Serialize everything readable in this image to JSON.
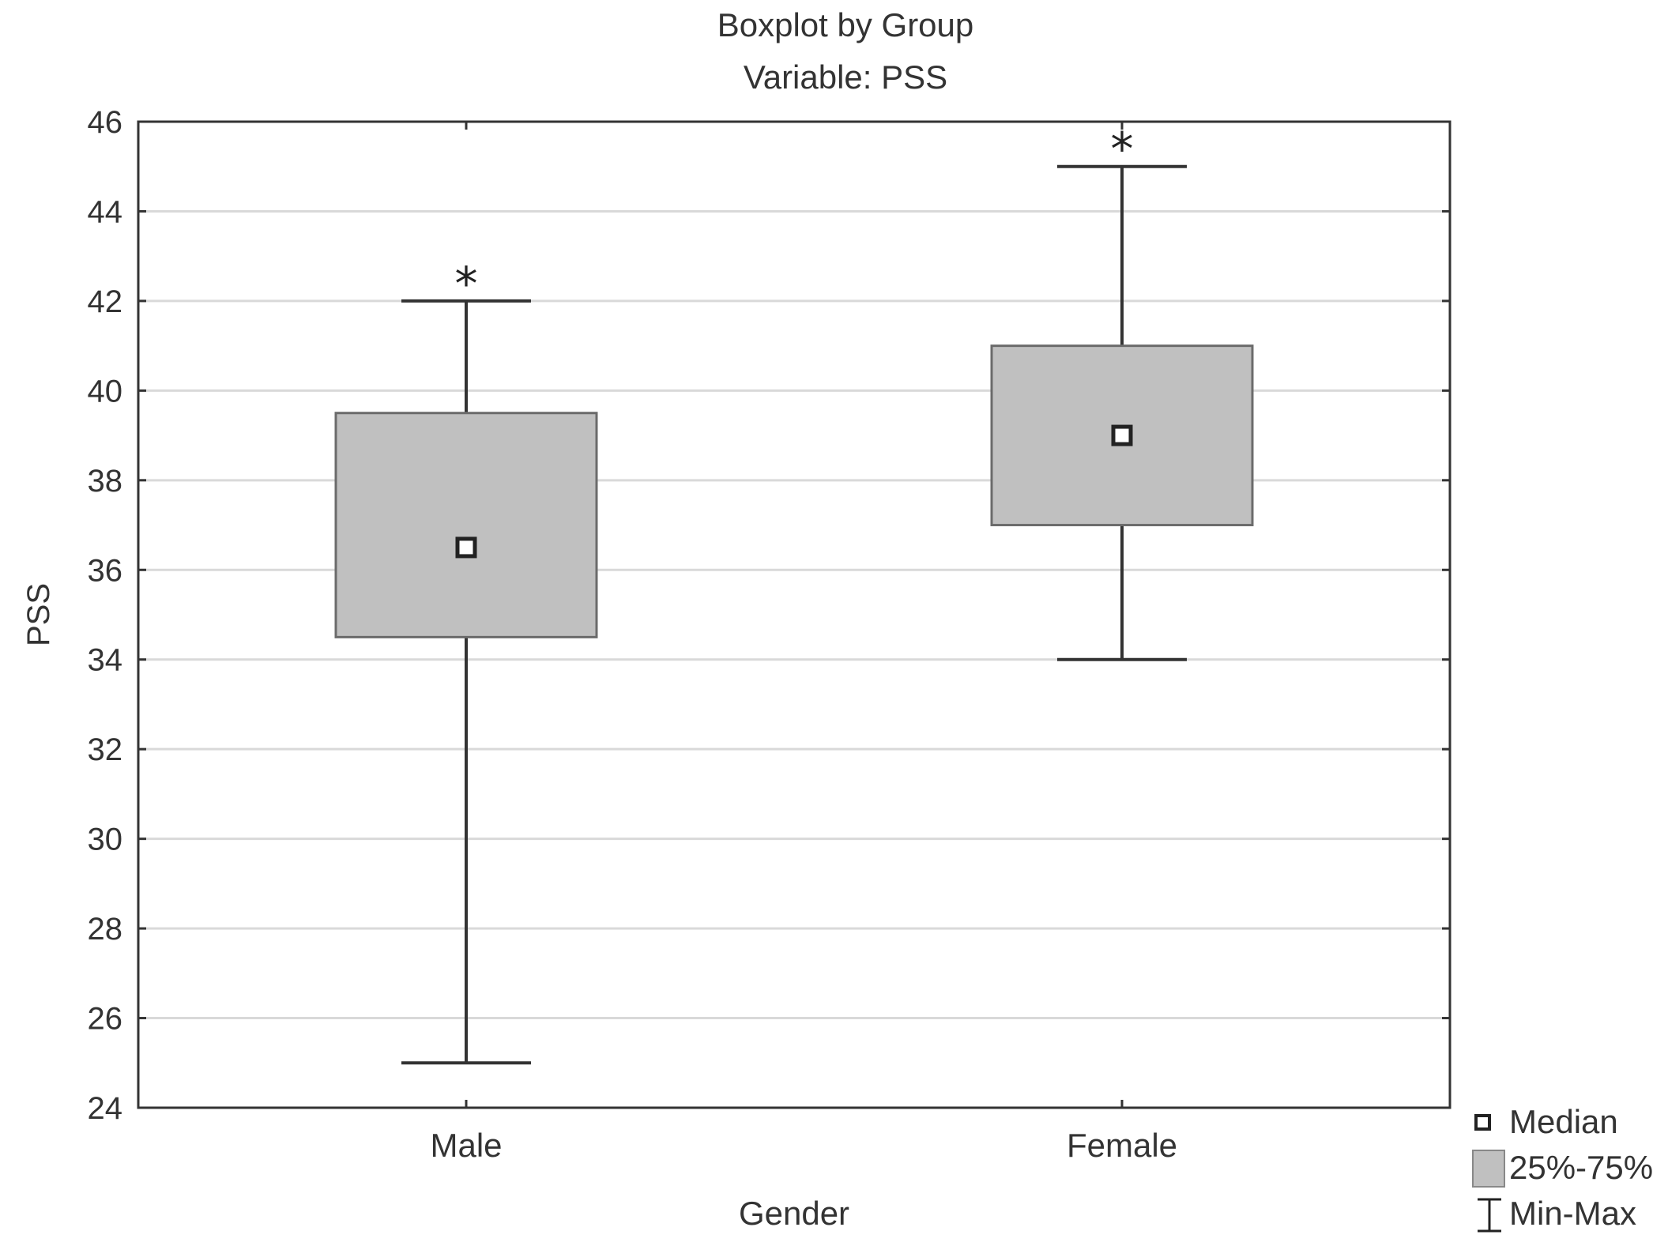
{
  "chart_data": {
    "type": "boxplot",
    "title": "Boxplot by Group",
    "subtitle": "Variable: PSS",
    "xlabel": "Gender",
    "ylabel": "PSS",
    "ylim": [
      24,
      46
    ],
    "yticks": [
      24,
      26,
      28,
      30,
      32,
      34,
      36,
      38,
      40,
      42,
      44,
      46
    ],
    "grid": true,
    "legend_position": "bottom-right",
    "categories": [
      "Male",
      "Female"
    ],
    "series": [
      {
        "category": "Male",
        "min": 25,
        "q1": 34.5,
        "median": 36.5,
        "q3": 39.5,
        "max": 42,
        "annotation": "*"
      },
      {
        "category": "Female",
        "min": 34,
        "q1": 37,
        "median": 39,
        "q3": 41,
        "max": 45,
        "annotation": "*"
      }
    ],
    "legend": [
      {
        "symbol": "median-square",
        "label": "Median"
      },
      {
        "symbol": "box",
        "label": "25%-75%"
      },
      {
        "symbol": "whisker",
        "label": "Min-Max"
      }
    ],
    "colors": {
      "box_fill": "#c0c0c0",
      "stroke": "#333333",
      "grid": "#d9d9d9"
    }
  }
}
